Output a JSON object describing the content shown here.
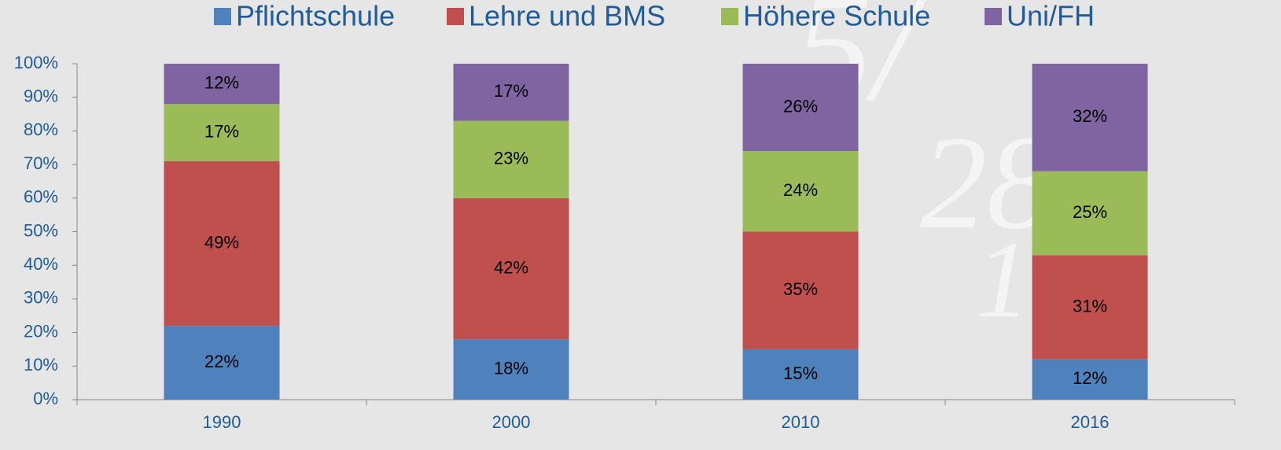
{
  "chart_data": {
    "type": "stacked_bar",
    "categories": [
      "1990",
      "2000",
      "2010",
      "2016"
    ],
    "series": [
      {
        "name": "Pflichtschule",
        "color": "#4f81bd",
        "values": [
          22,
          18,
          15,
          12
        ],
        "value_labels": [
          "22%",
          "18%",
          "15%",
          "12%"
        ]
      },
      {
        "name": "Lehre und BMS",
        "color": "#c0504d",
        "values": [
          49,
          42,
          35,
          31
        ],
        "value_labels": [
          "49%",
          "42%",
          "35%",
          "31%"
        ]
      },
      {
        "name": "Höhere Schule",
        "color": "#9bbb59",
        "values": [
          17,
          23,
          24,
          25
        ],
        "value_labels": [
          "17%",
          "23%",
          "24%",
          "25%"
        ]
      },
      {
        "name": "Uni/FH",
        "color": "#8064a2",
        "values": [
          12,
          17,
          26,
          32
        ],
        "value_labels": [
          "12%",
          "17%",
          "26%",
          "32%"
        ]
      }
    ],
    "ylim": [
      0,
      100
    ],
    "yticks": [
      {
        "value": 0,
        "label": "0%"
      },
      {
        "value": 10,
        "label": "10%"
      },
      {
        "value": 20,
        "label": "20%"
      },
      {
        "value": 30,
        "label": "30%"
      },
      {
        "value": 40,
        "label": "40%"
      },
      {
        "value": 50,
        "label": "50%"
      },
      {
        "value": 60,
        "label": "60%"
      },
      {
        "value": 70,
        "label": "70%"
      },
      {
        "value": 80,
        "label": "80%"
      },
      {
        "value": 90,
        "label": "90%"
      },
      {
        "value": 100,
        "label": "100%"
      }
    ],
    "grid": false,
    "legend": "top"
  }
}
